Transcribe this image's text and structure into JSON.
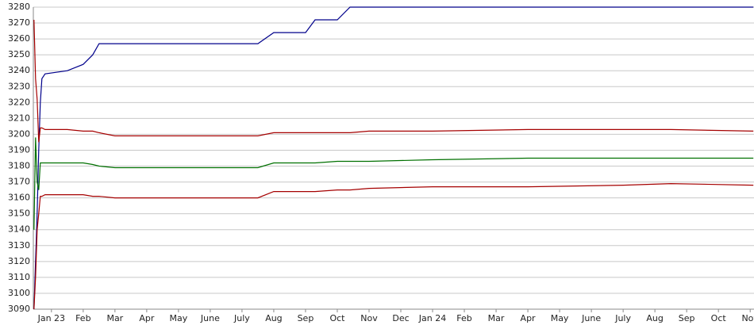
{
  "chart_data": {
    "type": "line",
    "x": [
      -0.55,
      -0.5,
      -0.45,
      -0.4,
      -0.35,
      -0.3,
      -0.2,
      0.5,
      1,
      1.3,
      1.5,
      2,
      6.5,
      7,
      8,
      8.3,
      9,
      9.4,
      10,
      12,
      15,
      18,
      19.5,
      22.1
    ],
    "series": [
      {
        "color": "#00008b",
        "values": [
          3090,
          3120,
          3150,
          3190,
          3220,
          3235,
          3238,
          3240,
          3244,
          3250,
          3257,
          3257,
          3257,
          3264,
          3264,
          3272,
          3272,
          3280,
          3280,
          3280,
          3280,
          3280,
          3280,
          3280
        ]
      },
      {
        "color": "#a50000",
        "values": [
          3272,
          3235,
          3222,
          3195,
          3204,
          3204,
          3203,
          3203,
          3202,
          3202,
          3201,
          3199,
          3199,
          3201,
          3201,
          3201,
          3201,
          3201,
          3202,
          3202,
          3203,
          3203,
          3203,
          3202
        ]
      },
      {
        "color": "#007000",
        "values": [
          3140,
          3198,
          3170,
          3165,
          3182,
          3182,
          3182,
          3182,
          3182,
          3181,
          3180,
          3179,
          3179,
          3182,
          3182,
          3182,
          3183,
          3183,
          3183,
          3184,
          3185,
          3185,
          3185,
          3185
        ]
      },
      {
        "color": "#a50000",
        "values": [
          3090,
          3110,
          3140,
          3150,
          3161,
          3161,
          3162,
          3162,
          3162,
          3161,
          3161,
          3160,
          3160,
          3164,
          3164,
          3164,
          3165,
          3165,
          3166,
          3167,
          3167,
          3168,
          3169,
          3168
        ]
      }
    ],
    "xlim": [
      -0.57,
      22.12
    ],
    "xticks": [
      {
        "value": 0,
        "label": "Jan 23"
      },
      {
        "value": 1,
        "label": "Feb"
      },
      {
        "value": 2,
        "label": "Mar"
      },
      {
        "value": 3,
        "label": "Apr"
      },
      {
        "value": 4,
        "label": "May"
      },
      {
        "value": 5,
        "label": "June"
      },
      {
        "value": 6,
        "label": "July"
      },
      {
        "value": 7,
        "label": "Aug"
      },
      {
        "value": 8,
        "label": "Sep"
      },
      {
        "value": 9,
        "label": "Oct"
      },
      {
        "value": 10,
        "label": "Nov"
      },
      {
        "value": 11,
        "label": "Dec"
      },
      {
        "value": 12,
        "label": "Jan 24"
      },
      {
        "value": 13,
        "label": "Feb"
      },
      {
        "value": 14,
        "label": "Mar"
      },
      {
        "value": 15,
        "label": "Apr"
      },
      {
        "value": 16,
        "label": "May"
      },
      {
        "value": 17,
        "label": "June"
      },
      {
        "value": 18,
        "label": "July"
      },
      {
        "value": 19,
        "label": "Aug"
      },
      {
        "value": 20,
        "label": "Sep"
      },
      {
        "value": 21,
        "label": "Oct"
      },
      {
        "value": 22,
        "label": "Nov"
      }
    ],
    "ylim": [
      3090,
      3280
    ],
    "yticks": [
      3090,
      3100,
      3110,
      3120,
      3130,
      3140,
      3150,
      3160,
      3170,
      3180,
      3190,
      3200,
      3210,
      3220,
      3230,
      3240,
      3250,
      3260,
      3270,
      3280
    ],
    "grid": true
  }
}
